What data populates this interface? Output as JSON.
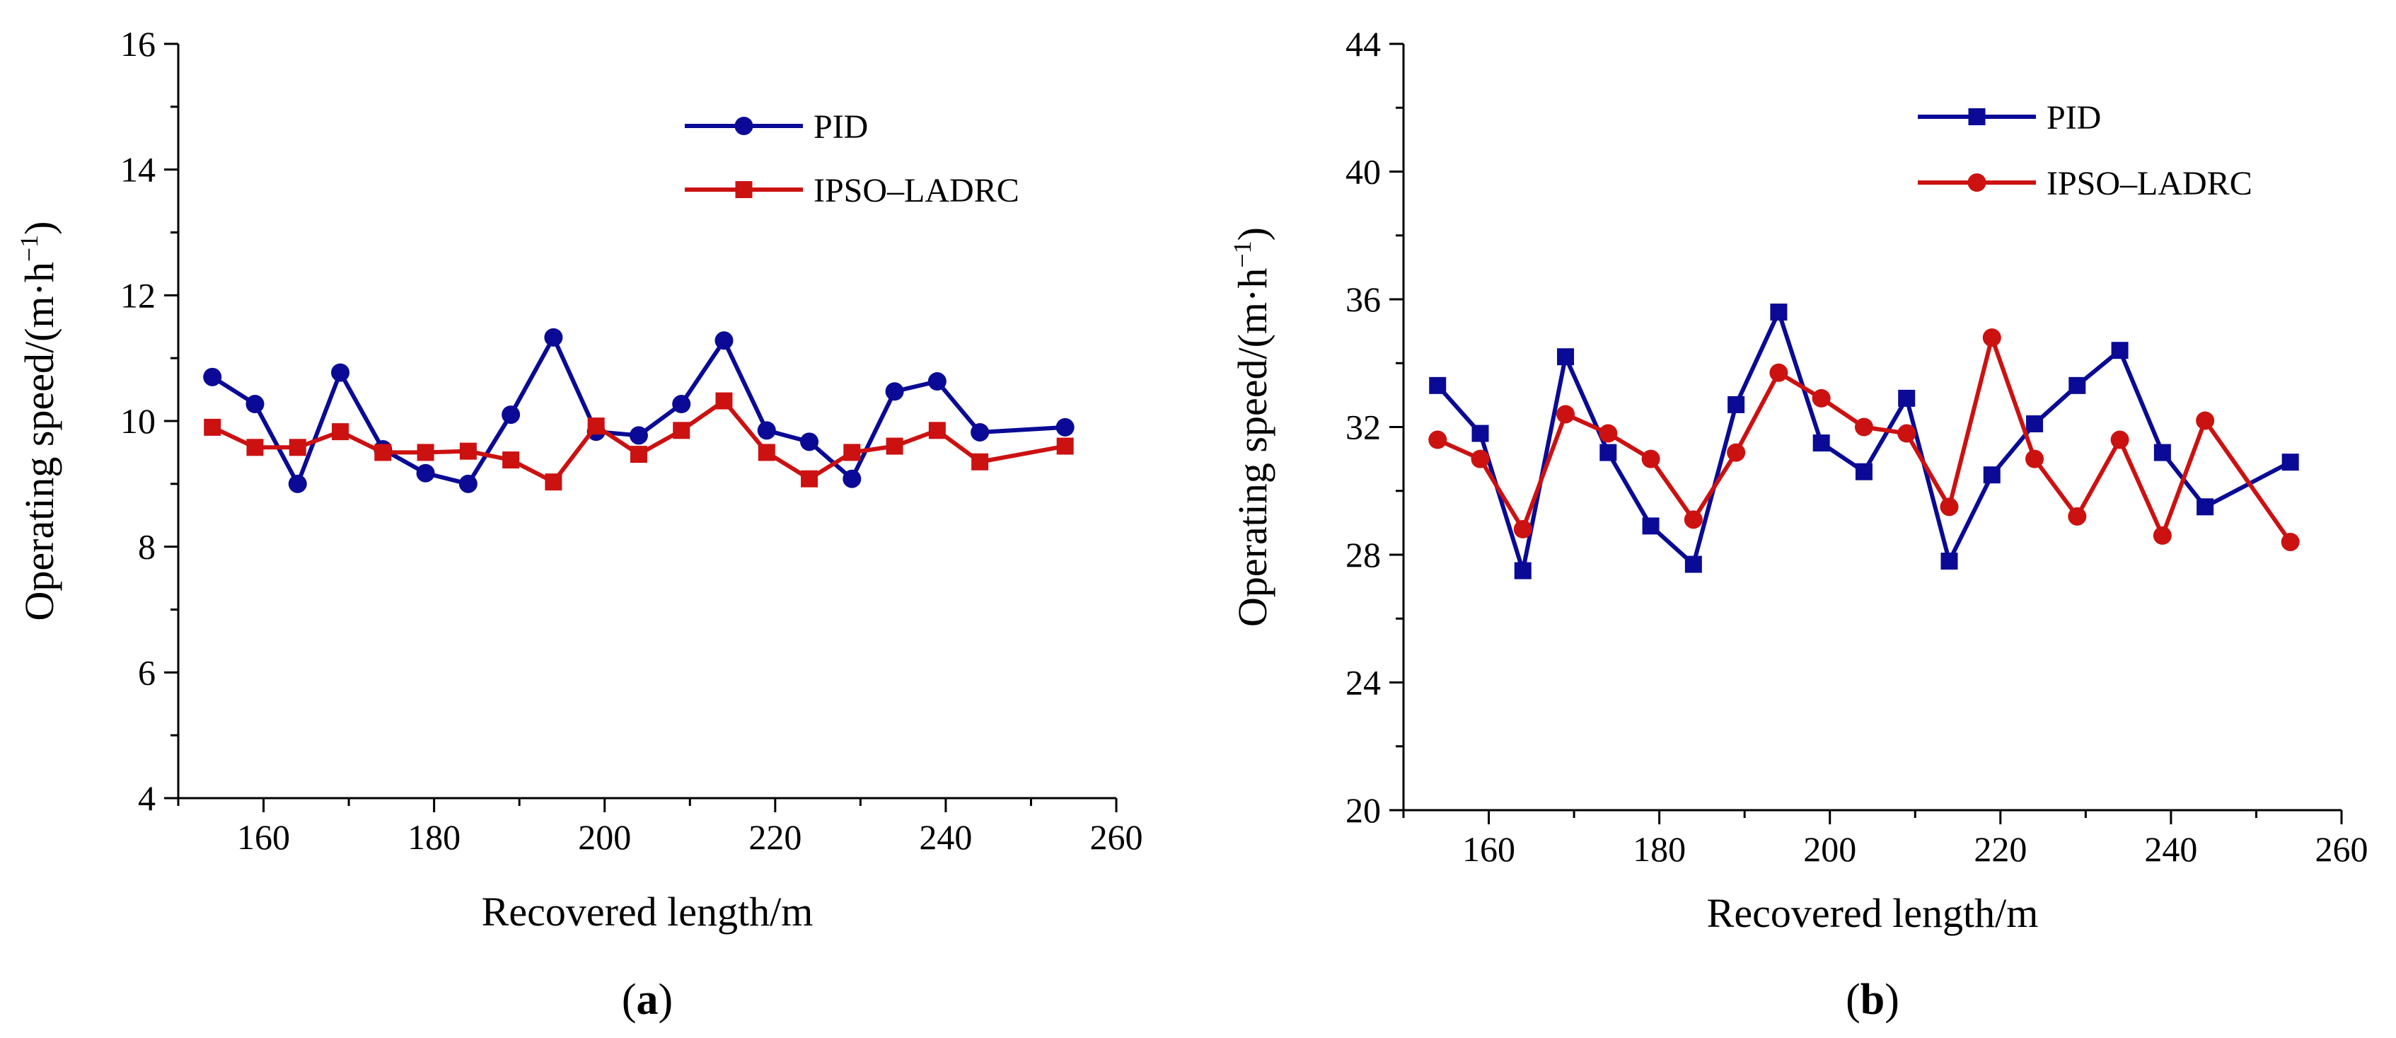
{
  "chart_data": [
    {
      "type": "line",
      "panel_label": {
        "open": "(",
        "letter": "a",
        "close": ")"
      },
      "xlabel": "Recovered length/m",
      "ylabel": {
        "prefix": "Operating speed/(m·h",
        "exp": "−1",
        "suffix": ")"
      },
      "xlim": [
        150,
        260
      ],
      "ylim": [
        4,
        16
      ],
      "xticks": [
        160,
        180,
        200,
        220,
        240,
        260
      ],
      "yticks": [
        4,
        6,
        8,
        10,
        12,
        14,
        16
      ],
      "legend_position": "top-right",
      "x": [
        154,
        159,
        164,
        169,
        174,
        179,
        184,
        189,
        194,
        199,
        204,
        209,
        214,
        219,
        224,
        229,
        234,
        239,
        244,
        254
      ],
      "series": [
        {
          "name": "PID",
          "color": "#0a0a96",
          "marker": "circle",
          "values": [
            10.7,
            10.27,
            9.0,
            10.77,
            9.55,
            9.17,
            9.0,
            10.1,
            11.33,
            9.83,
            9.77,
            10.27,
            11.28,
            9.85,
            9.67,
            9.08,
            10.47,
            10.63,
            9.82,
            9.9
          ]
        },
        {
          "name": "IPSO–LADRC",
          "color": "#cc1111",
          "marker": "square",
          "values": [
            9.9,
            9.58,
            9.58,
            9.83,
            9.5,
            9.5,
            9.52,
            9.38,
            9.03,
            9.92,
            9.47,
            9.85,
            10.32,
            9.5,
            9.08,
            9.5,
            9.6,
            9.85,
            9.35,
            9.6
          ]
        }
      ]
    },
    {
      "type": "line",
      "panel_label": {
        "open": "(",
        "letter": "b",
        "close": ")"
      },
      "xlabel": "Recovered length/m",
      "ylabel": {
        "prefix": "Operating speed/(m·h",
        "exp": "−1",
        "suffix": ")"
      },
      "xlim": [
        150,
        260
      ],
      "ylim": [
        20,
        44
      ],
      "xticks": [
        160,
        180,
        200,
        220,
        240,
        260
      ],
      "yticks": [
        20,
        24,
        28,
        32,
        36,
        40,
        44
      ],
      "legend_position": "top-right",
      "x": [
        154,
        159,
        164,
        169,
        174,
        179,
        184,
        189,
        194,
        199,
        204,
        209,
        214,
        219,
        224,
        229,
        234,
        239,
        244,
        254
      ],
      "series": [
        {
          "name": "PID",
          "color": "#0a0a96",
          "marker": "square",
          "values": [
            33.3,
            31.8,
            27.5,
            34.2,
            31.2,
            28.9,
            27.7,
            32.7,
            35.6,
            31.5,
            30.6,
            32.9,
            27.8,
            30.5,
            32.1,
            33.3,
            34.4,
            31.2,
            29.5,
            30.9
          ]
        },
        {
          "name": "IPSO–LADRC",
          "color": "#cc1111",
          "marker": "circle",
          "values": [
            31.6,
            31.0,
            28.8,
            32.4,
            31.8,
            31.0,
            29.1,
            31.2,
            33.7,
            32.9,
            32.0,
            31.8,
            29.5,
            34.8,
            31.0,
            29.2,
            31.6,
            28.6,
            32.2,
            28.4
          ]
        }
      ]
    }
  ]
}
